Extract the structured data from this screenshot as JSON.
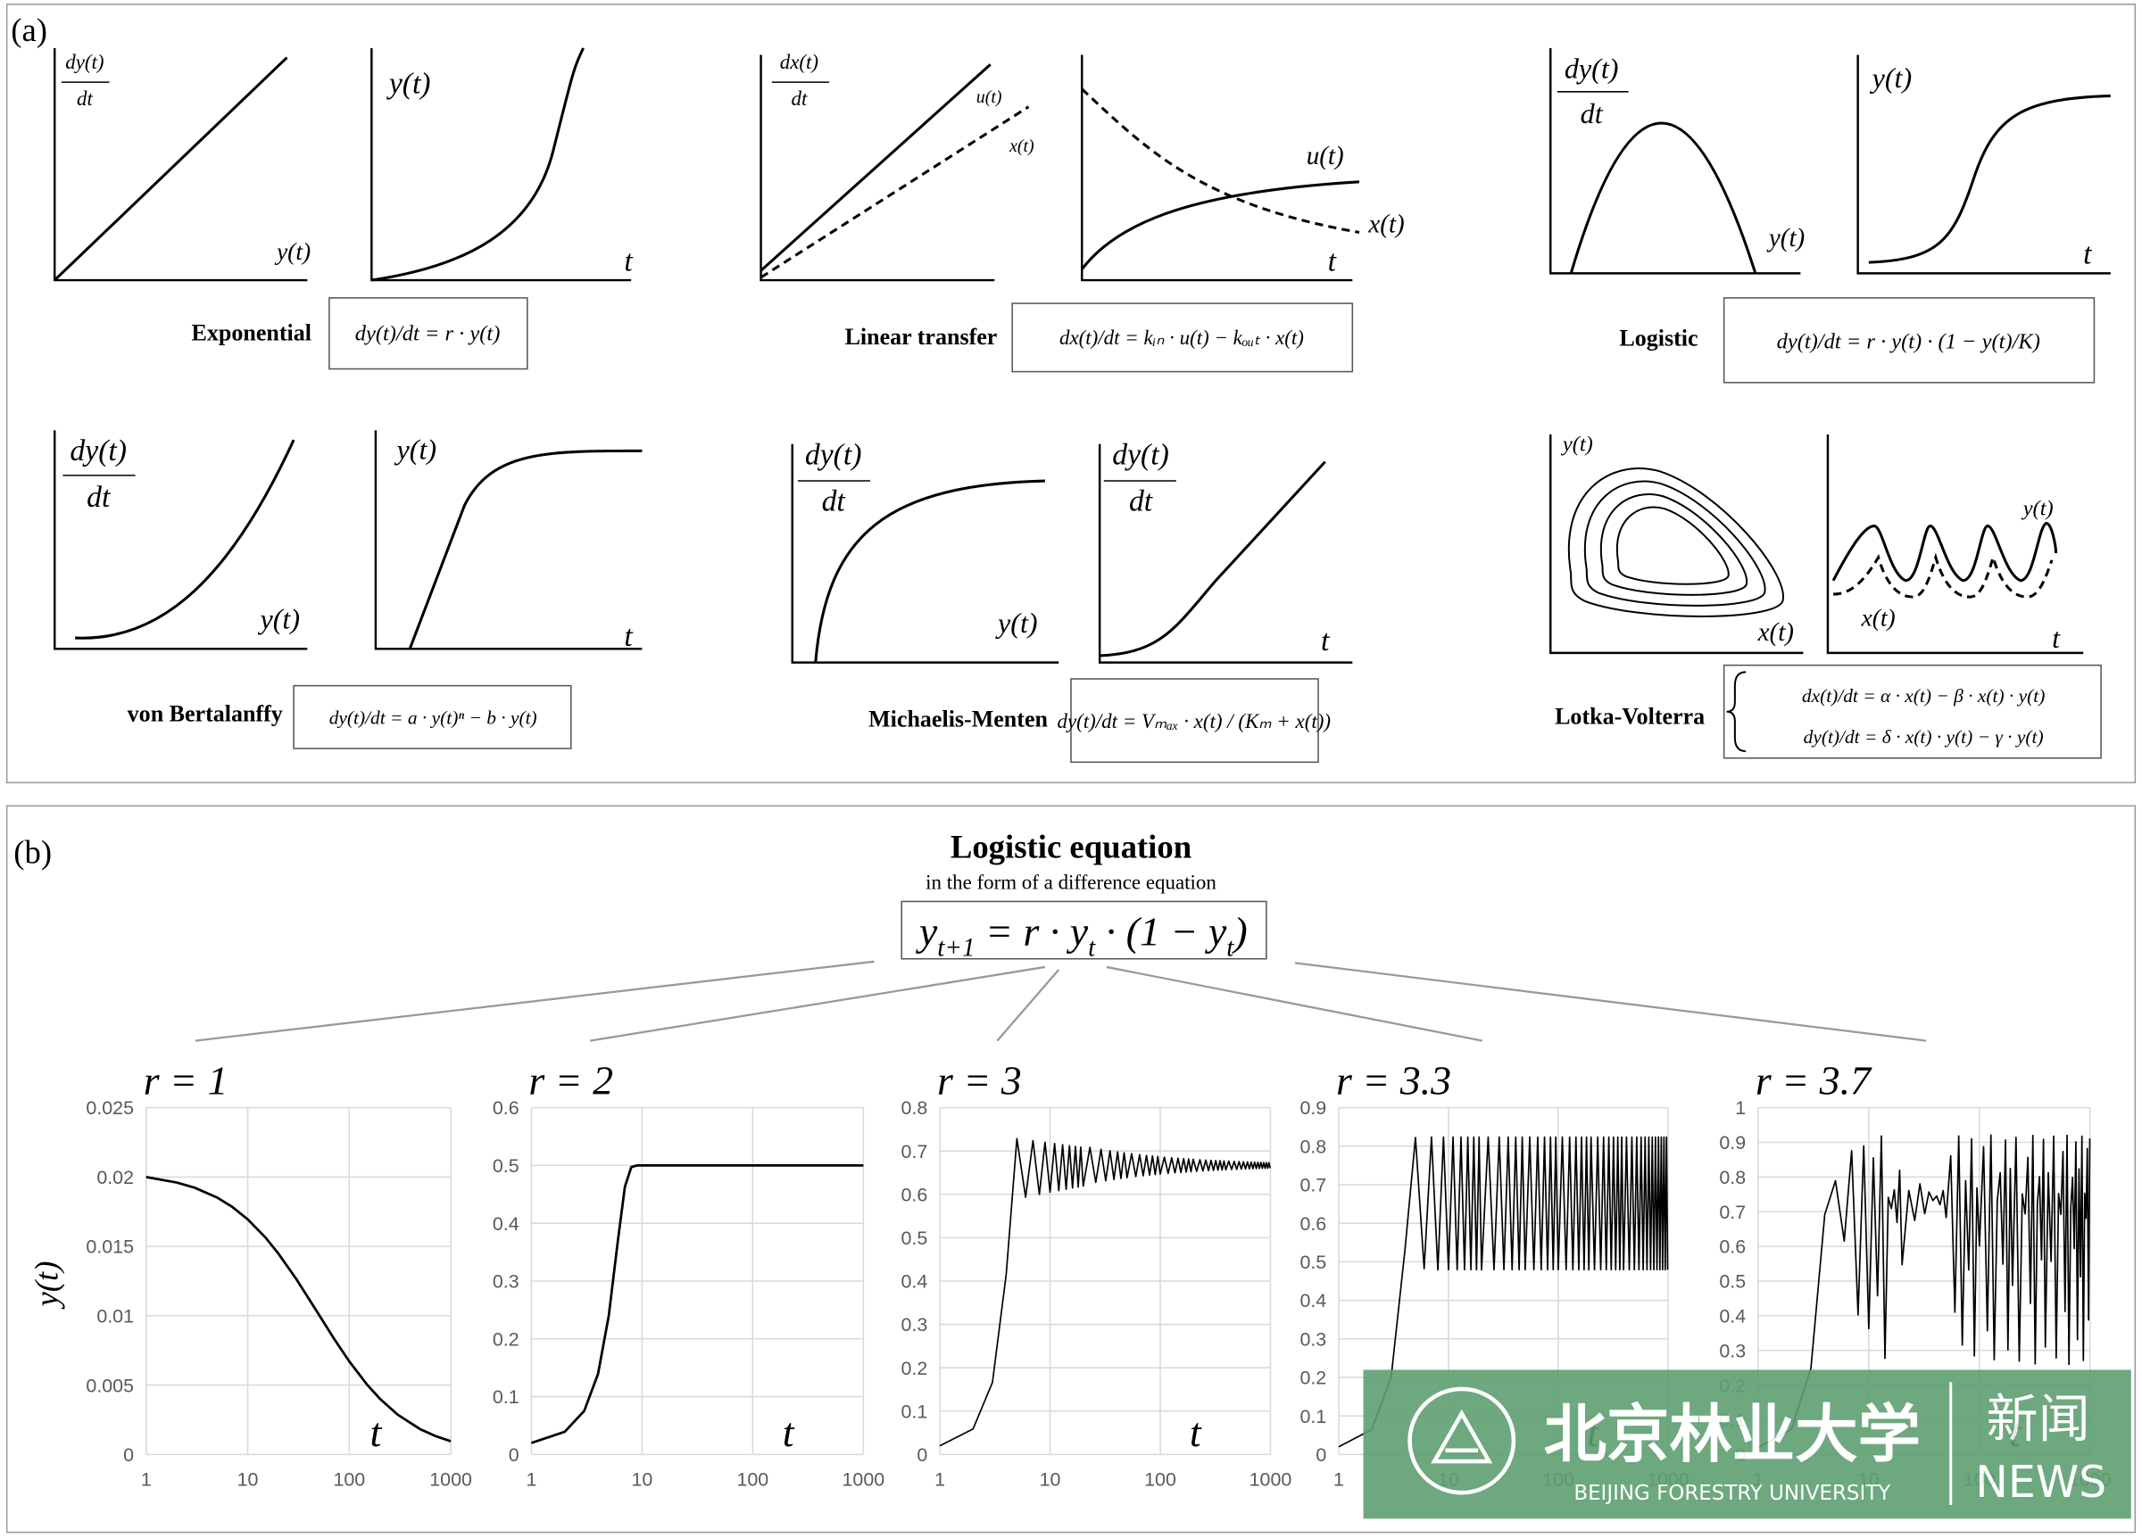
{
  "panel_a": {
    "label": "(a)",
    "models": [
      {
        "name": "Exponential",
        "formula": [
          "dy(t)/dt = r · y(t)"
        ],
        "plots": [
          {
            "ylabel": [
              "dy(t)",
              "dt"
            ],
            "xlabel": "y(t)"
          },
          {
            "ylabel": [
              "y(t)"
            ],
            "xlabel": "t"
          }
        ]
      },
      {
        "name": "Linear transfer",
        "formula": [
          "dx(t)/dt = kᵢₙ · u(t) − kₒᵤₜ · x(t)"
        ],
        "plots": [
          {
            "ylabel": [
              "dx(t)",
              "dt"
            ],
            "curve_labels": [
              "u(t)",
              "x(t)"
            ]
          },
          {
            "curve_labels": [
              "u(t)",
              "x(t)"
            ],
            "xlabel": "t"
          }
        ]
      },
      {
        "name": "Logistic",
        "formula": [
          "dy(t)/dt = r · y(t) · (1 − y(t)/K)"
        ],
        "plots": [
          {
            "ylabel": [
              "dy(t)",
              "dt"
            ],
            "xlabel": "y(t)"
          },
          {
            "ylabel": [
              "y(t)"
            ],
            "xlabel": "t"
          }
        ]
      },
      {
        "name": "von Bertalanffy",
        "formula": [
          "dy(t)/dt = a · y(t)ⁿ − b · y(t)"
        ],
        "plots": [
          {
            "ylabel": [
              "dy(t)",
              "dt"
            ],
            "xlabel": "y(t)"
          },
          {
            "ylabel": [
              "y(t)"
            ],
            "xlabel": "t"
          }
        ]
      },
      {
        "name": "Michaelis-Menten",
        "formula": [
          "dy(t)/dt = Vₘₐₓ · x(t) / (Kₘ + x(t))"
        ],
        "plots": [
          {
            "ylabel": [
              "dy(t)",
              "dt"
            ],
            "xlabel": "y(t)"
          },
          {
            "ylabel": [
              "dy(t)",
              "dt"
            ],
            "xlabel": "t"
          }
        ]
      },
      {
        "name": "Lotka-Volterra",
        "formula": [
          "dx(t)/dt = α · x(t) − β · x(t) · y(t)",
          "dy(t)/dt = δ · x(t) · y(t) − γ · y(t)"
        ],
        "plots": [
          {
            "ylabel": [
              "y(t)"
            ],
            "xlabel": "x(t)"
          },
          {
            "curve_labels": [
              "y(t)",
              "x(t)"
            ],
            "xlabel": "t"
          }
        ]
      }
    ]
  },
  "panel_b": {
    "label": "(b)",
    "title": "Logistic equation",
    "subtitle": "in the form of a difference equation",
    "formula": [
      "y",
      "t+1",
      " = r · y",
      "t",
      " · (1 − y",
      "t",
      ")"
    ]
  },
  "watermark": {
    "name_cn": "北京林业大学",
    "name_en": "BEIJING FORESTRY UNIVERSITY",
    "news_cn": "新闻",
    "news_en": "NEWS"
  },
  "chart_data": [
    {
      "type": "line",
      "title": "r = 1",
      "xlabel": "t",
      "ylabel": "y(t)",
      "x_scale": "log",
      "grid": true,
      "color": "#000000",
      "xlim": [
        1,
        1000
      ],
      "xticks": [
        1,
        10,
        100,
        1000
      ],
      "ylim": [
        0,
        0.025
      ],
      "yticks": [
        0,
        0.005,
        0.01,
        0.015,
        0.02,
        0.025
      ],
      "x": [
        1,
        2,
        3,
        5,
        7,
        10,
        15,
        20,
        30,
        50,
        70,
        100,
        150,
        200,
        300,
        500,
        700,
        1000
      ],
      "values": [
        0.02,
        0.0196,
        0.01923,
        0.01852,
        0.01786,
        0.01695,
        0.01563,
        0.01449,
        0.01266,
        0.0101,
        0.0084,
        0.00671,
        0.00503,
        0.00402,
        0.00287,
        0.00182,
        0.00134,
        0.00095
      ]
    },
    {
      "type": "line",
      "title": "r = 2",
      "xlabel": "t",
      "x_scale": "log",
      "grid": true,
      "color": "#000000",
      "xlim": [
        1,
        1000
      ],
      "xticks": [
        1,
        10,
        100,
        1000
      ],
      "ylim": [
        0,
        0.6
      ],
      "yticks": [
        0,
        0.1,
        0.2,
        0.3,
        0.4,
        0.5,
        0.6
      ],
      "x": [
        1,
        2,
        3,
        4,
        5,
        6,
        7,
        8,
        9,
        10,
        20,
        100,
        1000
      ],
      "values": [
        0.02,
        0.0392,
        0.0753,
        0.1393,
        0.2398,
        0.3646,
        0.4633,
        0.4973,
        0.49999,
        0.5,
        0.5,
        0.5,
        0.5
      ]
    },
    {
      "type": "line",
      "title": "r = 3",
      "xlabel": "t",
      "x_scale": "log",
      "grid": true,
      "color": "#000000",
      "xlim": [
        1,
        1000
      ],
      "xticks": [
        1,
        10,
        100,
        1000
      ],
      "ylim": [
        0,
        0.8
      ],
      "yticks": [
        0,
        0.1,
        0.2,
        0.3,
        0.4,
        0.5,
        0.6,
        0.7,
        0.8
      ],
      "x": [
        1,
        2,
        3,
        4,
        5,
        6,
        7,
        8,
        9,
        10,
        11,
        12,
        13,
        14,
        15,
        16,
        17,
        18,
        19,
        20,
        23,
        26,
        29,
        32,
        35,
        38,
        41,
        44,
        47,
        50,
        55,
        60,
        65,
        70,
        75,
        80,
        85,
        90,
        95,
        100,
        109,
        118,
        127,
        136,
        145,
        154,
        163,
        172,
        181,
        190,
        199,
        214,
        229,
        244,
        259,
        274,
        289,
        304,
        319,
        334,
        349,
        364,
        379,
        394,
        419,
        444,
        469,
        494,
        519,
        544,
        569,
        594,
        619,
        644,
        669,
        694,
        719,
        744,
        769,
        794,
        819,
        844,
        869,
        894,
        919,
        944,
        969,
        994
      ],
      "values": [
        0.02,
        0.0588,
        0.166,
        0.4154,
        0.7285,
        0.5934,
        0.7238,
        0.5997,
        0.7201,
        0.6048,
        0.7171,
        0.6086,
        0.7145,
        0.6119,
        0.7124,
        0.6146,
        0.7106,
        0.617,
        0.709,
        0.6191,
        0.7084,
        0.6275,
        0.7038,
        0.6313,
        0.7005,
        0.6343,
        0.6979,
        0.6365,
        0.6959,
        0.6384,
        0.6937,
        0.6409,
        0.6915,
        0.6428,
        0.6898,
        0.6443,
        0.6884,
        0.6456,
        0.6872,
        0.6467,
        0.6859,
        0.6483,
        0.6844,
        0.6496,
        0.6833,
        0.6506,
        0.6824,
        0.6514,
        0.6816,
        0.6522,
        0.6809,
        0.653,
        0.6799,
        0.6539,
        0.6791,
        0.6546,
        0.6785,
        0.6552,
        0.6779,
        0.6558,
        0.6774,
        0.6562,
        0.677,
        0.6566,
        0.6765,
        0.6572,
        0.6759,
        0.6577,
        0.6755,
        0.6581,
        0.6751,
        0.6585,
        0.6747,
        0.6588,
        0.6744,
        0.6591,
        0.6742,
        0.6594,
        0.6739,
        0.6596,
        0.6737,
        0.6598,
        0.6735,
        0.66,
        0.6733,
        0.6602,
        0.6731,
        0.6604
      ]
    },
    {
      "type": "line",
      "title": "r = 3.3",
      "xlabel": "t",
      "x_scale": "log",
      "grid": true,
      "color": "#000000",
      "xlim": [
        1,
        1000
      ],
      "xticks": [
        1,
        10,
        100,
        1000
      ],
      "ylim": [
        0,
        0.9
      ],
      "yticks": [
        0,
        0.1,
        0.2,
        0.3,
        0.4,
        0.5,
        0.6,
        0.7,
        0.8,
        0.9
      ],
      "x": [
        1,
        2,
        3,
        4,
        5,
        6,
        7,
        8,
        9,
        10,
        11,
        12,
        13,
        14,
        15,
        16,
        17,
        18,
        19,
        20,
        23,
        26,
        29,
        32,
        35,
        38,
        41,
        44,
        47,
        50,
        55,
        60,
        65,
        70,
        75,
        80,
        85,
        90,
        95,
        100,
        109,
        118,
        127,
        136,
        145,
        154,
        163,
        172,
        181,
        190,
        199,
        214,
        229,
        244,
        259,
        274,
        289,
        304,
        319,
        334,
        349,
        364,
        379,
        394,
        419,
        444,
        469,
        494,
        519,
        544,
        569,
        594,
        619,
        644,
        669,
        694,
        719,
        744,
        769,
        794,
        819,
        844,
        869,
        894,
        919,
        944,
        969,
        994
      ],
      "values": [
        0.02,
        0.0647,
        0.1997,
        0.5274,
        0.8225,
        0.4818,
        0.8239,
        0.479,
        0.8236,
        0.4794,
        0.8236,
        0.4794,
        0.8236,
        0.4794,
        0.8236,
        0.4794,
        0.8236,
        0.4794,
        0.8236,
        0.4794,
        0.8236,
        0.4794,
        0.8236,
        0.4794,
        0.8236,
        0.4794,
        0.8236,
        0.4794,
        0.8236,
        0.4794,
        0.8236,
        0.4794,
        0.8236,
        0.4794,
        0.8236,
        0.4794,
        0.8236,
        0.4794,
        0.8236,
        0.4794,
        0.8236,
        0.4794,
        0.8236,
        0.4794,
        0.8236,
        0.4794,
        0.8236,
        0.4794,
        0.8236,
        0.4794,
        0.8236,
        0.4794,
        0.8236,
        0.4794,
        0.8236,
        0.4794,
        0.8236,
        0.4794,
        0.8236,
        0.4794,
        0.8236,
        0.4794,
        0.8236,
        0.4794,
        0.8236,
        0.4794,
        0.8236,
        0.4794,
        0.8236,
        0.4794,
        0.8236,
        0.4794,
        0.8236,
        0.4794,
        0.8236,
        0.4794,
        0.8236,
        0.4794,
        0.8236,
        0.4794,
        0.8236,
        0.4794,
        0.8236,
        0.4794,
        0.8236,
        0.4794,
        0.8236,
        0.4794
      ]
    },
    {
      "type": "line",
      "title": "r = 3.7",
      "xlabel": "t",
      "x_scale": "log",
      "grid": true,
      "color": "#000000",
      "xlim": [
        1,
        1000
      ],
      "xticks": [
        1,
        10,
        100,
        1000
      ],
      "ylim": [
        0,
        1
      ],
      "yticks": [
        0,
        0.1,
        0.2,
        0.3,
        0.4,
        0.5,
        0.6,
        0.7,
        0.8,
        0.9,
        1
      ],
      "x": [
        1,
        2,
        3,
        4,
        5,
        6,
        7,
        8,
        9,
        10,
        11,
        12,
        13,
        14,
        15,
        16,
        17,
        18,
        19,
        20,
        23,
        26,
        29,
        32,
        35,
        38,
        41,
        44,
        47,
        50,
        55,
        60,
        65,
        70,
        75,
        80,
        85,
        90,
        95,
        100,
        109,
        118,
        127,
        136,
        145,
        154,
        163,
        172,
        181,
        190,
        199,
        214,
        229,
        244,
        259,
        274,
        289,
        304,
        319,
        334,
        349,
        364,
        379,
        394,
        419,
        444,
        469,
        494,
        519,
        544,
        569,
        594,
        619,
        644,
        669,
        694,
        719,
        744,
        769,
        794,
        819,
        844,
        869,
        894,
        919,
        944,
        969,
        994
      ],
      "values": [
        0.02,
        0.0725,
        0.2488,
        0.6915,
        0.7893,
        0.6153,
        0.8758,
        0.4025,
        0.8898,
        0.3628,
        0.8554,
        0.4577,
        0.9184,
        0.2773,
        0.7415,
        0.7092,
        0.7631,
        0.6689,
        0.8195,
        0.5473,
        0.7612,
        0.6745,
        0.7803,
        0.6942,
        0.7568,
        0.7321,
        0.7453,
        0.7201,
        0.7609,
        0.6832,
        0.8612,
        0.4102,
        0.9183,
        0.3155,
        0.7894,
        0.5321,
        0.9102,
        0.2843,
        0.7688,
        0.6012,
        0.8876,
        0.3567,
        0.9212,
        0.2731,
        0.7321,
        0.8123,
        0.5489,
        0.9065,
        0.3012,
        0.8245,
        0.4876,
        0.9143,
        0.2689,
        0.7512,
        0.6934,
        0.8567,
        0.4356,
        0.9198,
        0.2612,
        0.7234,
        0.8012,
        0.5612,
        0.9087,
        0.3098,
        0.8123,
        0.5567,
        0.9176,
        0.2784,
        0.7523,
        0.6921,
        0.8734,
        0.4123,
        0.9201,
        0.2598,
        0.7102,
        0.7987,
        0.5934,
        0.9012,
        0.3312,
        0.8234,
        0.5123,
        0.9176,
        0.2712,
        0.7534,
        0.6812,
        0.8823,
        0.3876,
        0.9112
      ]
    }
  ]
}
